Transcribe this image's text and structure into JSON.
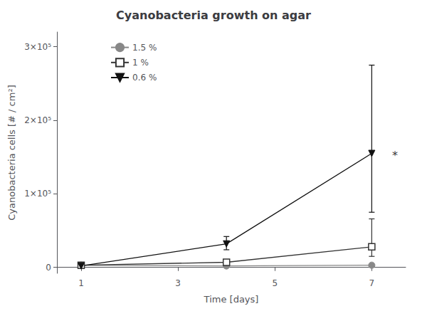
{
  "chart_data": {
    "type": "line",
    "title": "Cyanobacteria growth on agar",
    "x_label": "Time [days]",
    "y_label": "Cyanobacteria cells [# / cm²]",
    "xlim": [
      0.5,
      7.7
    ],
    "xticks": [
      1,
      3,
      5,
      7
    ],
    "ylim": [
      -8000,
      320000
    ],
    "yticks": [
      0,
      {
        "value": 100000,
        "label": "1×10⁵"
      },
      {
        "value": 200000,
        "label": "2×10⁵"
      },
      {
        "value": 300000,
        "label": "3×10⁵"
      }
    ],
    "grid": false,
    "legend": "upper left",
    "series": [
      {
        "name": "1.5 %",
        "color": "#888888",
        "marker": "circle",
        "x": [
          1,
          4,
          7
        ],
        "values": [
          3000,
          2000,
          3000
        ],
        "error_low": [
          0,
          0,
          0
        ],
        "error_high": [
          0,
          0,
          0
        ]
      },
      {
        "name": "1 %",
        "color": "#333333",
        "marker": "square-open",
        "x": [
          1,
          4,
          7
        ],
        "values": [
          3000,
          7000,
          28000
        ],
        "error_low": [
          0,
          0,
          13000
        ],
        "error_high": [
          0,
          0,
          38000
        ]
      },
      {
        "name": "0.6 %",
        "color": "#111111",
        "marker": "triangle-down",
        "x": [
          1,
          4,
          7
        ],
        "values": [
          2000,
          32000,
          155000
        ],
        "error_low": [
          0,
          8000,
          80000
        ],
        "error_high": [
          0,
          10000,
          120000
        ]
      }
    ],
    "annotations": [
      {
        "text": "*",
        "x": 7.42,
        "y": 152000
      }
    ]
  }
}
